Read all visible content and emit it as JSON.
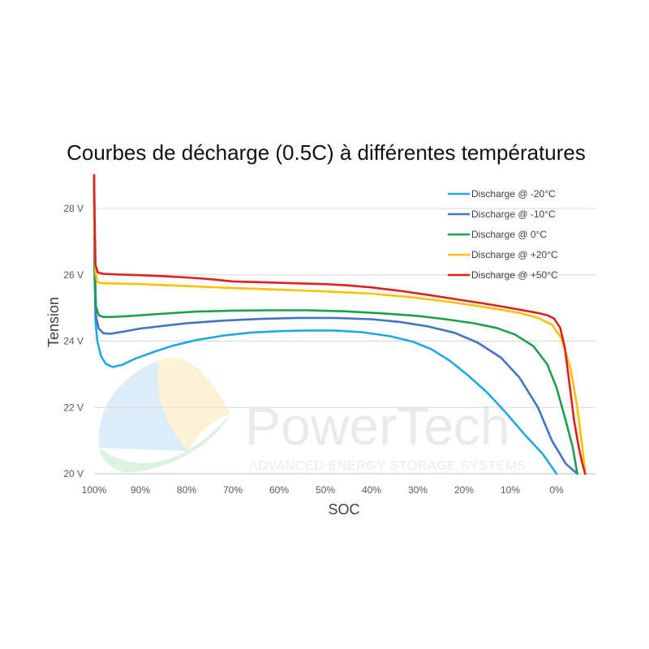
{
  "chart_data": {
    "type": "line",
    "title": "Courbes de décharge (0.5C) à différentes températures",
    "xlabel": "SOC",
    "ylabel": "Tension",
    "x_ticks": [
      "100%",
      "90%",
      "80%",
      "70%",
      "60%",
      "50%",
      "40%",
      "30%",
      "20%",
      "10%",
      "0%"
    ],
    "y_ticks": [
      "20 V",
      "22 V",
      "24 V",
      "26 V",
      "28 V"
    ],
    "xlim": [
      100,
      -7
    ],
    "ylim": [
      20,
      29
    ],
    "grid": true,
    "legend_position": "top-right",
    "series": [
      {
        "name": "Discharge @ -20°C",
        "color": "#20A9E0",
        "points": [
          [
            100,
            29.0
          ],
          [
            99.9,
            26.2
          ],
          [
            99.7,
            24.6
          ],
          [
            99.3,
            24.0
          ],
          [
            98.5,
            23.55
          ],
          [
            97.5,
            23.32
          ],
          [
            96,
            23.22
          ],
          [
            94,
            23.28
          ],
          [
            91,
            23.48
          ],
          [
            87,
            23.68
          ],
          [
            83,
            23.86
          ],
          [
            78,
            24.03
          ],
          [
            72,
            24.17
          ],
          [
            66,
            24.26
          ],
          [
            60,
            24.3
          ],
          [
            54,
            24.32
          ],
          [
            48,
            24.32
          ],
          [
            42,
            24.27
          ],
          [
            36,
            24.15
          ],
          [
            31,
            23.98
          ],
          [
            27,
            23.75
          ],
          [
            23,
            23.4
          ],
          [
            19,
            22.95
          ],
          [
            15,
            22.45
          ],
          [
            11,
            21.85
          ],
          [
            7,
            21.2
          ],
          [
            3,
            20.6
          ],
          [
            0,
            20.0
          ]
        ]
      },
      {
        "name": "Discharge @ -10°C",
        "color": "#4472C4",
        "points": [
          [
            100,
            29.0
          ],
          [
            99.9,
            25.9
          ],
          [
            99.6,
            24.75
          ],
          [
            99,
            24.38
          ],
          [
            98,
            24.24
          ],
          [
            96.5,
            24.22
          ],
          [
            94,
            24.28
          ],
          [
            90,
            24.38
          ],
          [
            85,
            24.46
          ],
          [
            80,
            24.54
          ],
          [
            72,
            24.62
          ],
          [
            64,
            24.67
          ],
          [
            56,
            24.7
          ],
          [
            48,
            24.7
          ],
          [
            40,
            24.66
          ],
          [
            34,
            24.58
          ],
          [
            28,
            24.45
          ],
          [
            22,
            24.25
          ],
          [
            17,
            23.95
          ],
          [
            12,
            23.5
          ],
          [
            8,
            22.9
          ],
          [
            4,
            22.0
          ],
          [
            1,
            21.0
          ],
          [
            -2,
            20.3
          ],
          [
            -4.5,
            20.0
          ]
        ]
      },
      {
        "name": "Discharge @ 0°C",
        "color": "#1BA14C",
        "points": [
          [
            100,
            29.0
          ],
          [
            99.9,
            26.6
          ],
          [
            99.6,
            25.05
          ],
          [
            99,
            24.78
          ],
          [
            98,
            24.73
          ],
          [
            96,
            24.73
          ],
          [
            92,
            24.76
          ],
          [
            86,
            24.82
          ],
          [
            78,
            24.89
          ],
          [
            70,
            24.92
          ],
          [
            62,
            24.93
          ],
          [
            54,
            24.93
          ],
          [
            46,
            24.9
          ],
          [
            38,
            24.84
          ],
          [
            30,
            24.76
          ],
          [
            24,
            24.66
          ],
          [
            18,
            24.54
          ],
          [
            13,
            24.4
          ],
          [
            9,
            24.2
          ],
          [
            5,
            23.85
          ],
          [
            2,
            23.3
          ],
          [
            0,
            22.6
          ],
          [
            -2,
            21.6
          ],
          [
            -3.5,
            20.8
          ],
          [
            -4.5,
            20.0
          ]
        ]
      },
      {
        "name": "Discharge @ +20°C",
        "color": "#FFC000",
        "points": [
          [
            100,
            29.0
          ],
          [
            99.9,
            27.3
          ],
          [
            99.7,
            26.05
          ],
          [
            99.3,
            25.78
          ],
          [
            98.5,
            25.75
          ],
          [
            96,
            25.74
          ],
          [
            90,
            25.72
          ],
          [
            80,
            25.66
          ],
          [
            70,
            25.6
          ],
          [
            60,
            25.55
          ],
          [
            50,
            25.5
          ],
          [
            40,
            25.43
          ],
          [
            32,
            25.33
          ],
          [
            24,
            25.2
          ],
          [
            18,
            25.08
          ],
          [
            12,
            24.95
          ],
          [
            8,
            24.85
          ],
          [
            4,
            24.7
          ],
          [
            1,
            24.5
          ],
          [
            -1,
            24.1
          ],
          [
            -3,
            23.2
          ],
          [
            -4.5,
            22.0
          ],
          [
            -5.6,
            20.8
          ],
          [
            -6.2,
            20.0
          ]
        ]
      },
      {
        "name": "Discharge @ +50°C",
        "color": "#E0201E",
        "points": [
          [
            100,
            29.0
          ],
          [
            99.9,
            27.8
          ],
          [
            99.7,
            26.3
          ],
          [
            99.2,
            26.07
          ],
          [
            98,
            26.03
          ],
          [
            95,
            26.01
          ],
          [
            90,
            25.99
          ],
          [
            85,
            25.96
          ],
          [
            80,
            25.92
          ],
          [
            75,
            25.87
          ],
          [
            70,
            25.8
          ],
          [
            65,
            25.78
          ],
          [
            60,
            25.76
          ],
          [
            55,
            25.74
          ],
          [
            50,
            25.72
          ],
          [
            45,
            25.68
          ],
          [
            40,
            25.62
          ],
          [
            34,
            25.52
          ],
          [
            28,
            25.4
          ],
          [
            22,
            25.27
          ],
          [
            16,
            25.14
          ],
          [
            12,
            25.05
          ],
          [
            8,
            24.95
          ],
          [
            4,
            24.85
          ],
          [
            2,
            24.78
          ],
          [
            0.5,
            24.68
          ],
          [
            -0.8,
            24.4
          ],
          [
            -1.8,
            23.8
          ],
          [
            -2.8,
            22.7
          ],
          [
            -3.8,
            21.6
          ],
          [
            -4.8,
            20.8
          ],
          [
            -5.6,
            20.3
          ],
          [
            -6.2,
            20.0
          ]
        ]
      }
    ]
  },
  "watermark": {
    "brand": "PowerTech",
    "tagline": "ADVANCED ENERGY STORAGE SYSTEMS"
  }
}
